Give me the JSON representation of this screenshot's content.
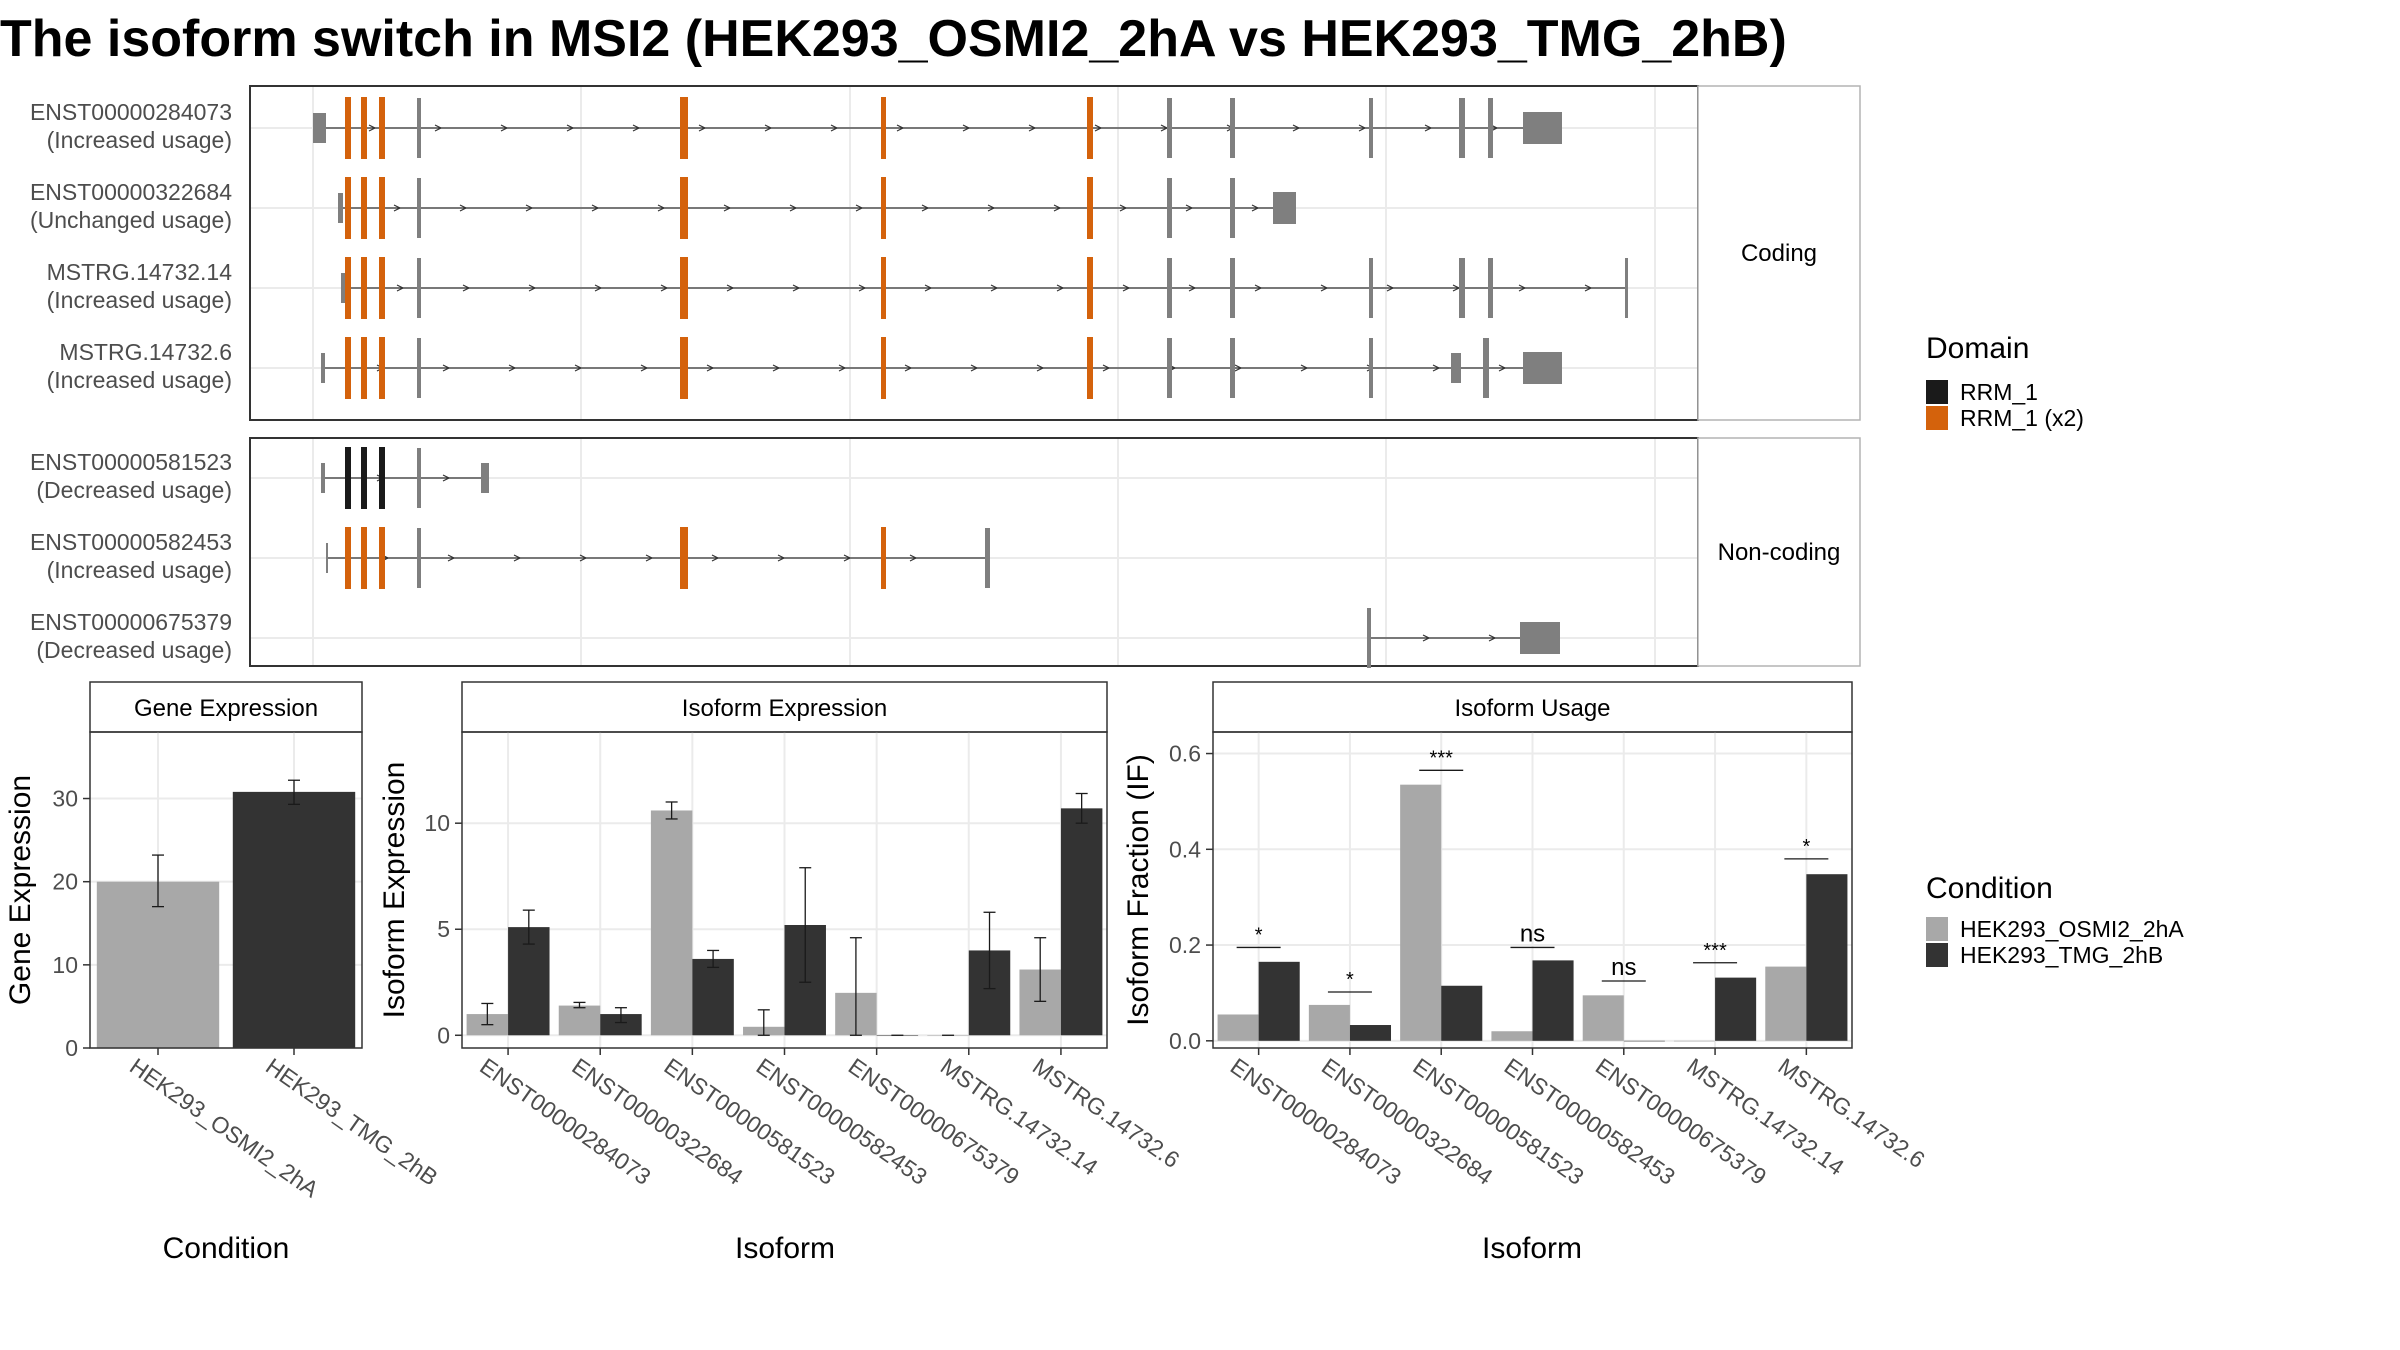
{
  "title": "The isoform switch in MSI2 (HEK293_OSMI2_2hA vs HEK293_TMG_2hB)",
  "colors": {
    "cond_a": "#a8a8a8",
    "cond_b": "#333333",
    "exon": "#7f7f7f",
    "domain_rrm": "#1a1a1a",
    "domain_rrm_x2": "#d4620c",
    "panel_border": "#333333",
    "strip_bg": "#ffffff",
    "grid": "#ebebeb"
  },
  "structure_panel": {
    "facets": [
      {
        "label": "Coding",
        "transcripts": [
          {
            "id": "ENST00000284073",
            "usage": "(Increased usage)"
          },
          {
            "id": "ENST00000322684",
            "usage": "(Unchanged usage)"
          },
          {
            "id": "MSTRG.14732.14",
            "usage": "(Increased usage)"
          },
          {
            "id": "MSTRG.14732.6",
            "usage": "(Increased usage)"
          }
        ]
      },
      {
        "label": "Non-coding",
        "transcripts": [
          {
            "id": "ENST00000581523",
            "usage": "(Decreased usage)"
          },
          {
            "id": "ENST00000582453",
            "usage": "(Increased usage)"
          },
          {
            "id": "ENST00000675379",
            "usage": "(Decreased usage)"
          }
        ]
      }
    ]
  },
  "domain_legend": {
    "title": "Domain",
    "items": [
      {
        "label": "RRM_1",
        "color": "#1a1a1a"
      },
      {
        "label": "RRM_1 (x2)",
        "color": "#d4620c"
      }
    ]
  },
  "condition_legend": {
    "title": "Condition",
    "items": [
      {
        "label": "HEK293_OSMI2_2hA",
        "color": "#a8a8a8"
      },
      {
        "label": "HEK293_TMG_2hB",
        "color": "#333333"
      }
    ]
  },
  "chart_data": [
    {
      "type": "bar",
      "title": "Gene Expression",
      "xlabel": "Condition",
      "ylabel": "Gene Expression",
      "categories": [
        "HEK293_OSMI2_2hA",
        "HEK293_TMG_2hB"
      ],
      "values": [
        20.0,
        30.8
      ],
      "error_low": [
        17.0,
        29.3
      ],
      "error_high": [
        23.2,
        32.2
      ],
      "ylim": [
        0,
        38
      ],
      "yticks": [
        0,
        10,
        20,
        30
      ]
    },
    {
      "type": "bar",
      "title": "Isoform Expression",
      "xlabel": "Isoform",
      "ylabel": "Isoform Expression",
      "categories": [
        "ENST00000284073",
        "ENST00000322684",
        "ENST00000581523",
        "ENST00000582453",
        "ENST00000675379",
        "MSTRG.14732.14",
        "MSTRG.14732.6"
      ],
      "series": [
        {
          "name": "HEK293_OSMI2_2hA",
          "values": [
            1.0,
            1.4,
            10.6,
            0.4,
            2.0,
            0.0,
            3.1
          ],
          "error_low": [
            0.5,
            1.3,
            10.2,
            0.0,
            0.0,
            0.0,
            1.6
          ],
          "error_high": [
            1.5,
            1.55,
            11.0,
            1.2,
            4.6,
            0.0,
            4.6
          ]
        },
        {
          "name": "HEK293_TMG_2hB",
          "values": [
            5.1,
            1.0,
            3.6,
            5.2,
            0.0,
            4.0,
            10.7
          ],
          "error_low": [
            4.3,
            0.6,
            3.2,
            2.5,
            0.0,
            2.2,
            10.0
          ],
          "error_high": [
            5.9,
            1.3,
            4.0,
            7.9,
            0.0,
            5.8,
            11.4
          ]
        }
      ],
      "ylim": [
        -0.6,
        14.3
      ],
      "yticks": [
        0,
        5,
        10
      ]
    },
    {
      "type": "bar",
      "title": "Isoform Usage",
      "xlabel": "Isoform",
      "ylabel": "Isoform Fraction (IF)",
      "categories": [
        "ENST00000284073",
        "ENST00000322684",
        "ENST00000581523",
        "ENST00000582453",
        "ENST00000675379",
        "MSTRG.14732.14",
        "MSTRG.14732.6"
      ],
      "series": [
        {
          "name": "HEK293_OSMI2_2hA",
          "values": [
            0.055,
            0.075,
            0.535,
            0.02,
            0.095,
            0.0,
            0.155
          ]
        },
        {
          "name": "HEK293_TMG_2hB",
          "values": [
            0.165,
            0.033,
            0.115,
            0.168,
            0.0,
            0.132,
            0.348
          ]
        }
      ],
      "significance": [
        "*",
        "*",
        "***",
        "ns",
        "ns",
        "***",
        "*"
      ],
      "significance_y": [
        0.195,
        0.102,
        0.565,
        0.195,
        0.125,
        0.163,
        0.38
      ],
      "ylim": [
        -0.015,
        0.645
      ],
      "yticks": [
        0.0,
        0.2,
        0.4,
        0.6
      ],
      "ytick_labels": [
        "0.0",
        "0.2",
        "0.4",
        "0.6"
      ]
    }
  ]
}
